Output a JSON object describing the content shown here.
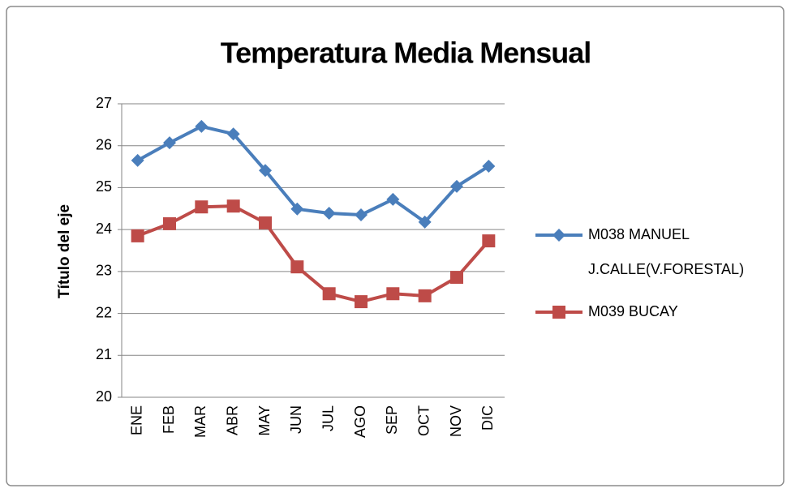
{
  "chart_data": {
    "type": "line",
    "title": "Temperatura Media Mensual",
    "y_label": "Título del eje",
    "categories": [
      "ENE",
      "FEB",
      "MAR",
      "ABR",
      "MAY",
      "JUN",
      "JUL",
      "AGO",
      "SEP",
      "OCT",
      "NOV",
      "DIC"
    ],
    "series": [
      {
        "name": "M038 MANUEL J.CALLE(V.FORESTAL)",
        "color": "#4a7ebb",
        "marker": "diamond",
        "values": [
          25.65,
          26.07,
          26.46,
          26.28,
          25.41,
          24.49,
          24.39,
          24.35,
          24.72,
          24.18,
          25.03,
          25.51
        ]
      },
      {
        "name": "M039 BUCAY",
        "color": "#be4b48",
        "marker": "square",
        "values": [
          23.85,
          24.14,
          24.54,
          24.56,
          24.16,
          23.11,
          22.47,
          22.28,
          22.47,
          22.42,
          22.86,
          23.73
        ]
      }
    ],
    "ylim": [
      20,
      27
    ],
    "yticks": [
      20,
      21,
      22,
      23,
      24,
      25,
      26,
      27
    ],
    "grid": true,
    "legend": "right"
  }
}
